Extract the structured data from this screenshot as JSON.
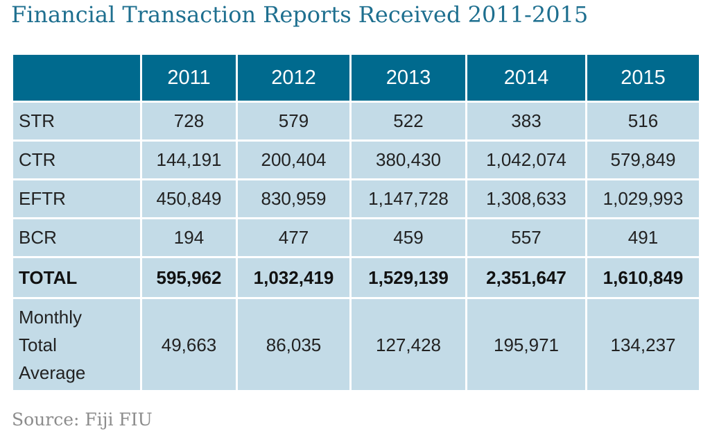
{
  "title": "Financial Transaction Reports Received 2011-2015",
  "source": "Source: Fiji FIU",
  "colors": {
    "title": "#1e6f8f",
    "header_bg": "#006a8e",
    "cell_bg": "#c3dbe7",
    "source": "#8c8c8c"
  },
  "chart_data": {
    "type": "table",
    "title": "Financial Transaction Reports Received 2011-2015",
    "columns": [
      "2011",
      "2012",
      "2013",
      "2014",
      "2015"
    ],
    "rows": [
      {
        "label": "STR",
        "values": [
          "728",
          "579",
          "522",
          "383",
          "516"
        ]
      },
      {
        "label": "CTR",
        "values": [
          "144,191",
          "200,404",
          "380,430",
          "1,042,074",
          "579,849"
        ]
      },
      {
        "label": "EFTR",
        "values": [
          "450,849",
          "830,959",
          "1,147,728",
          "1,308,633",
          "1,029,993"
        ]
      },
      {
        "label": "BCR",
        "values": [
          "194",
          "477",
          "459",
          "557",
          "491"
        ]
      },
      {
        "label": "TOTAL",
        "values": [
          "595,962",
          "1,032,419",
          "1,529,139",
          "2,351,647",
          "1,610,849"
        ]
      },
      {
        "label_lines": [
          "Monthly",
          "Total",
          "Average"
        ],
        "values": [
          "49,663",
          "86,035",
          "127,428",
          "195,971",
          "134,237"
        ]
      }
    ]
  }
}
